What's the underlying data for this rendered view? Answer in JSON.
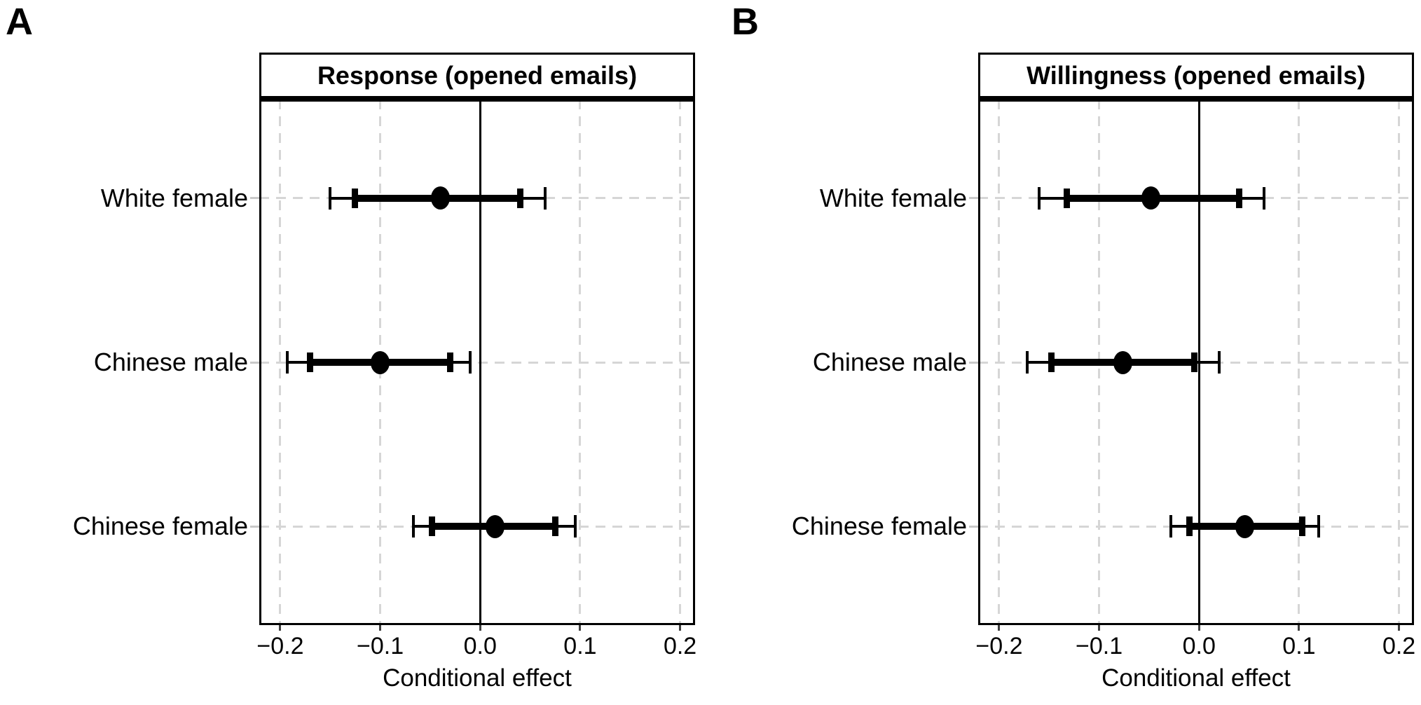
{
  "colors": {
    "foreground": "#000000",
    "background": "#ffffff",
    "gridline": "#d6d6d6",
    "x_axis_tick": "#3f3f3f",
    "y_axis_tick": "#c9c9c9"
  },
  "chart_data": [
    {
      "type": "scatter",
      "subtype": "forest-pointrange",
      "panel_label": "A",
      "title": "Response (opened emails)",
      "xlabel": "Conditional effect",
      "categories": [
        "White female",
        "Chinese male",
        "Chinese female"
      ],
      "x_ticks": [
        -0.2,
        -0.1,
        0,
        0.1,
        0.2
      ],
      "x_tick_labels": [
        "−0.2",
        "−0.1",
        "0.0",
        "0.1",
        "0.2"
      ],
      "xlim": [
        -0.221,
        0.215
      ],
      "grid": "dashed vertical lines at x ticks and dashed horizontal lines at category rows",
      "zero_reference_line": 0,
      "legend": "none",
      "series": [
        {
          "category": "White female",
          "estimate": -0.04,
          "thick_interval": [
            -0.125,
            0.04
          ],
          "thin_interval": [
            -0.15,
            0.065
          ]
        },
        {
          "category": "Chinese male",
          "estimate": -0.1,
          "thick_interval": [
            -0.17,
            -0.03
          ],
          "thin_interval": [
            -0.193,
            -0.01
          ]
        },
        {
          "category": "Chinese female",
          "estimate": 0.015,
          "thick_interval": [
            -0.048,
            0.075
          ],
          "thin_interval": [
            -0.067,
            0.095
          ]
        }
      ]
    },
    {
      "type": "scatter",
      "subtype": "forest-pointrange",
      "panel_label": "B",
      "title": "Willingness (opened emails)",
      "xlabel": "Conditional effect",
      "categories": [
        "White female",
        "Chinese male",
        "Chinese female"
      ],
      "x_ticks": [
        -0.2,
        -0.1,
        0,
        0.1,
        0.2
      ],
      "x_tick_labels": [
        "−0.2",
        "−0.1",
        "0.0",
        "0.1",
        "0.2"
      ],
      "xlim": [
        -0.221,
        0.215
      ],
      "grid": "dashed vertical lines at x ticks and dashed horizontal lines at category rows",
      "zero_reference_line": 0,
      "legend": "none",
      "series": [
        {
          "category": "White female",
          "estimate": -0.048,
          "thick_interval": [
            -0.132,
            0.04
          ],
          "thin_interval": [
            -0.16,
            0.065
          ]
        },
        {
          "category": "Chinese male",
          "estimate": -0.076,
          "thick_interval": [
            -0.148,
            -0.005
          ],
          "thin_interval": [
            -0.172,
            0.02
          ]
        },
        {
          "category": "Chinese female",
          "estimate": 0.046,
          "thick_interval": [
            -0.01,
            0.103
          ],
          "thin_interval": [
            -0.028,
            0.12
          ]
        }
      ]
    }
  ]
}
